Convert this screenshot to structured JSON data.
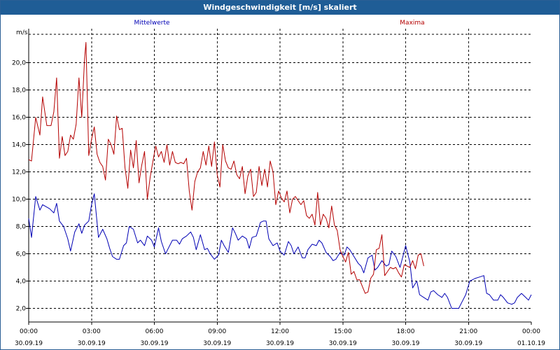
{
  "window": {
    "title": "Windgeschwindigkeit [m/s] skaliert"
  },
  "chart_data": {
    "type": "line",
    "title": "Windgeschwindigkeit [m/s] skaliert",
    "ylabel": "m/s",
    "xlabel": "",
    "ylim": [
      1.0,
      22.5
    ],
    "xlim": [
      0,
      72
    ],
    "x_unit": "hours from 30.09.19 00:00",
    "grid": true,
    "legend_placement": "top",
    "yticks": [
      "2,0",
      "4,0",
      "6,0",
      "8,0",
      "10,0",
      "12,0",
      "14,0",
      "16,0",
      "18,0",
      "20,0"
    ],
    "ytick_values": [
      2,
      4,
      6,
      8,
      10,
      12,
      14,
      16,
      18,
      20
    ],
    "xticks": [
      {
        "time": "00:00",
        "date": "30.09.19"
      },
      {
        "time": "03:00",
        "date": "30.09.19"
      },
      {
        "time": "06:00",
        "date": "30.09.19"
      },
      {
        "time": "09:00",
        "date": "30.09.19"
      },
      {
        "time": "12:00",
        "date": "30.09.19"
      },
      {
        "time": "15:00",
        "date": "30.09.19"
      },
      {
        "time": "18:00",
        "date": "30.09.19"
      },
      {
        "time": "21:00",
        "date": "30.09.19"
      },
      {
        "time": "00:00",
        "date": "01.10.19"
      }
    ],
    "series": [
      {
        "name": "Mittelwerte",
        "color": "#0000b4",
        "values": [
          [
            0,
            8.6
          ],
          [
            0.2,
            7.2
          ],
          [
            0.5,
            10.2
          ],
          [
            0.8,
            9.2
          ],
          [
            1.0,
            9.6
          ],
          [
            1.5,
            9.3
          ],
          [
            1.8,
            9.0
          ],
          [
            2.0,
            9.7
          ],
          [
            2.2,
            8.4
          ],
          [
            2.5,
            8.0
          ],
          [
            2.8,
            7.1
          ],
          [
            3.0,
            6.2
          ],
          [
            3.3,
            7.6
          ],
          [
            3.6,
            8.2
          ],
          [
            3.8,
            7.5
          ],
          [
            4.0,
            8.1
          ],
          [
            4.3,
            8.4
          ],
          [
            4.5,
            9.6
          ],
          [
            4.7,
            10.4
          ],
          [
            5.0,
            7.2
          ],
          [
            5.3,
            7.8
          ],
          [
            5.6,
            7.1
          ],
          [
            5.8,
            6.4
          ],
          [
            6.0,
            5.8
          ],
          [
            6.3,
            5.6
          ],
          [
            6.5,
            5.6
          ],
          [
            6.8,
            6.6
          ],
          [
            7.0,
            6.8
          ],
          [
            7.2,
            8.0
          ],
          [
            7.5,
            7.8
          ],
          [
            7.8,
            6.8
          ],
          [
            8.0,
            7.0
          ],
          [
            8.3,
            6.6
          ],
          [
            8.5,
            7.3
          ],
          [
            8.8,
            7.0
          ],
          [
            9.0,
            6.5
          ],
          [
            9.3,
            7.9
          ],
          [
            9.5,
            6.9
          ],
          [
            9.8,
            6.0
          ],
          [
            10.0,
            6.4
          ],
          [
            10.3,
            7.0
          ],
          [
            10.6,
            7.0
          ],
          [
            10.8,
            6.7
          ],
          [
            11.0,
            7.1
          ],
          [
            11.3,
            7.3
          ],
          [
            11.6,
            7.6
          ],
          [
            11.8,
            7.2
          ],
          [
            12.0,
            6.3
          ],
          [
            12.3,
            7.4
          ],
          [
            12.6,
            6.3
          ],
          [
            12.8,
            6.4
          ],
          [
            13.0,
            6.0
          ],
          [
            13.3,
            5.6
          ],
          [
            13.6,
            5.9
          ],
          [
            13.8,
            7.0
          ],
          [
            14.0,
            6.6
          ],
          [
            14.3,
            6.1
          ],
          [
            14.6,
            7.9
          ],
          [
            14.8,
            7.5
          ],
          [
            15.0,
            7.0
          ],
          [
            15.3,
            7.3
          ],
          [
            15.6,
            7.1
          ],
          [
            15.8,
            6.4
          ],
          [
            16.0,
            7.2
          ],
          [
            16.3,
            7.3
          ],
          [
            16.6,
            8.3
          ],
          [
            16.8,
            8.4
          ],
          [
            17.0,
            8.4
          ],
          [
            17.2,
            7.1
          ],
          [
            17.5,
            6.6
          ],
          [
            17.8,
            6.8
          ],
          [
            18.0,
            6.2
          ],
          [
            18.3,
            5.9
          ],
          [
            18.6,
            6.9
          ],
          [
            18.8,
            6.6
          ],
          [
            19.0,
            6.0
          ],
          [
            19.3,
            6.5
          ],
          [
            19.6,
            5.7
          ],
          [
            19.8,
            5.7
          ],
          [
            20.0,
            6.3
          ],
          [
            20.3,
            6.7
          ],
          [
            20.6,
            6.6
          ],
          [
            20.8,
            7.0
          ],
          [
            21.0,
            6.8
          ],
          [
            21.3,
            6.1
          ],
          [
            21.6,
            5.8
          ],
          [
            21.8,
            5.5
          ],
          [
            22.0,
            5.6
          ],
          [
            22.3,
            6.1
          ],
          [
            22.6,
            5.9
          ],
          [
            22.8,
            6.5
          ],
          [
            23.0,
            6.3
          ],
          [
            23.3,
            5.8
          ],
          [
            23.6,
            5.3
          ],
          [
            23.8,
            5.1
          ],
          [
            24.0,
            4.6
          ],
          [
            24.3,
            5.7
          ],
          [
            24.6,
            5.9
          ],
          [
            24.8,
            4.8
          ],
          [
            25.0,
            5.0
          ],
          [
            25.3,
            5.5
          ],
          [
            25.6,
            5.1
          ],
          [
            25.8,
            5.2
          ],
          [
            26.0,
            6.2
          ],
          [
            26.3,
            5.8
          ],
          [
            26.6,
            5.0
          ],
          [
            26.8,
            5.8
          ],
          [
            27.0,
            6.6
          ],
          [
            27.3,
            5.4
          ],
          [
            27.5,
            3.5
          ],
          [
            27.8,
            4.0
          ],
          [
            28.0,
            3.0
          ],
          [
            28.3,
            2.8
          ],
          [
            28.6,
            2.6
          ],
          [
            28.8,
            3.2
          ],
          [
            29.0,
            3.3
          ],
          [
            29.3,
            3.0
          ],
          [
            29.6,
            2.8
          ],
          [
            29.8,
            3.1
          ],
          [
            30.0,
            2.8
          ],
          [
            30.3,
            2.0
          ],
          [
            30.6,
            2.0
          ],
          [
            30.8,
            2.0
          ],
          [
            31.0,
            2.4
          ],
          [
            31.3,
            3.0
          ],
          [
            31.6,
            4.0
          ],
          [
            31.8,
            4.1
          ],
          [
            32.0,
            4.2
          ],
          [
            32.3,
            4.3
          ],
          [
            32.6,
            4.4
          ],
          [
            32.8,
            3.1
          ],
          [
            33.0,
            3.0
          ],
          [
            33.3,
            2.6
          ],
          [
            33.6,
            2.6
          ],
          [
            33.8,
            3.0
          ],
          [
            34.0,
            2.8
          ],
          [
            34.3,
            2.4
          ],
          [
            34.6,
            2.3
          ],
          [
            34.8,
            2.4
          ],
          [
            35.0,
            2.8
          ],
          [
            35.3,
            3.1
          ],
          [
            35.6,
            2.8
          ],
          [
            35.8,
            2.6
          ],
          [
            36.0,
            3.0
          ]
        ]
      },
      {
        "name": "Maxima",
        "color": "#b40000",
        "values": [
          [
            0,
            12.9
          ],
          [
            0.2,
            12.8
          ],
          [
            0.5,
            16.0
          ],
          [
            0.8,
            14.7
          ],
          [
            1.0,
            17.5
          ],
          [
            1.3,
            15.4
          ],
          [
            1.6,
            15.4
          ],
          [
            1.8,
            16.4
          ],
          [
            2.0,
            18.9
          ],
          [
            2.2,
            13.0
          ],
          [
            2.4,
            14.6
          ],
          [
            2.6,
            13.2
          ],
          [
            2.8,
            13.5
          ],
          [
            3.0,
            14.7
          ],
          [
            3.2,
            14.4
          ],
          [
            3.4,
            15.5
          ],
          [
            3.6,
            18.9
          ],
          [
            3.8,
            16.0
          ],
          [
            4.0,
            20.3
          ],
          [
            4.1,
            21.5
          ],
          [
            4.3,
            13.2
          ],
          [
            4.5,
            14.4
          ],
          [
            4.7,
            15.3
          ],
          [
            4.9,
            13.3
          ],
          [
            5.1,
            12.7
          ],
          [
            5.3,
            12.4
          ],
          [
            5.5,
            11.4
          ],
          [
            5.7,
            14.4
          ],
          [
            5.9,
            14.0
          ],
          [
            6.1,
            13.3
          ],
          [
            6.3,
            16.1
          ],
          [
            6.5,
            15.1
          ],
          [
            6.7,
            15.2
          ],
          [
            6.9,
            12.3
          ],
          [
            7.1,
            10.8
          ],
          [
            7.3,
            13.6
          ],
          [
            7.5,
            12.3
          ],
          [
            7.7,
            14.3
          ],
          [
            7.9,
            11.2
          ],
          [
            8.1,
            12.5
          ],
          [
            8.3,
            13.5
          ],
          [
            8.5,
            10.0
          ],
          [
            8.7,
            11.6
          ],
          [
            8.9,
            12.8
          ],
          [
            9.1,
            13.9
          ],
          [
            9.3,
            13.1
          ],
          [
            9.5,
            13.5
          ],
          [
            9.7,
            12.7
          ],
          [
            9.9,
            14.0
          ],
          [
            10.1,
            12.5
          ],
          [
            10.3,
            13.5
          ],
          [
            10.5,
            12.7
          ],
          [
            10.7,
            12.6
          ],
          [
            10.9,
            12.7
          ],
          [
            11.1,
            12.6
          ],
          [
            11.3,
            13.0
          ],
          [
            11.5,
            10.6
          ],
          [
            11.7,
            9.2
          ],
          [
            11.9,
            11.3
          ],
          [
            12.1,
            12.0
          ],
          [
            12.3,
            12.3
          ],
          [
            12.5,
            13.5
          ],
          [
            12.7,
            12.5
          ],
          [
            12.9,
            13.9
          ],
          [
            13.1,
            12.4
          ],
          [
            13.3,
            14.2
          ],
          [
            13.5,
            11.8
          ],
          [
            13.7,
            10.9
          ],
          [
            13.9,
            14.0
          ],
          [
            14.1,
            12.8
          ],
          [
            14.3,
            12.3
          ],
          [
            14.5,
            12.2
          ],
          [
            14.7,
            12.8
          ],
          [
            14.9,
            11.8
          ],
          [
            15.1,
            11.5
          ],
          [
            15.3,
            12.4
          ],
          [
            15.5,
            10.4
          ],
          [
            15.7,
            11.7
          ],
          [
            15.9,
            12.2
          ],
          [
            16.1,
            10.2
          ],
          [
            16.3,
            10.5
          ],
          [
            16.5,
            12.4
          ],
          [
            16.7,
            11.0
          ],
          [
            16.9,
            12.2
          ],
          [
            17.1,
            10.9
          ],
          [
            17.3,
            12.8
          ],
          [
            17.5,
            12.0
          ],
          [
            17.7,
            9.6
          ],
          [
            17.9,
            10.6
          ],
          [
            18.1,
            10.1
          ],
          [
            18.3,
            9.8
          ],
          [
            18.5,
            10.6
          ],
          [
            18.7,
            9.0
          ],
          [
            18.9,
            10.0
          ],
          [
            19.1,
            10.2
          ],
          [
            19.3,
            9.9
          ],
          [
            19.5,
            9.6
          ],
          [
            19.7,
            9.9
          ],
          [
            19.9,
            8.8
          ],
          [
            20.1,
            8.6
          ],
          [
            20.3,
            8.9
          ],
          [
            20.5,
            8.1
          ],
          [
            20.7,
            10.5
          ],
          [
            20.9,
            8.1
          ],
          [
            21.1,
            8.9
          ],
          [
            21.3,
            8.6
          ],
          [
            21.5,
            7.9
          ],
          [
            21.7,
            9.5
          ],
          [
            21.9,
            8.1
          ],
          [
            22.1,
            7.7
          ],
          [
            22.3,
            6.3
          ],
          [
            22.5,
            5.8
          ],
          [
            22.7,
            5.4
          ],
          [
            22.9,
            6.1
          ],
          [
            23.1,
            4.5
          ],
          [
            23.3,
            4.7
          ],
          [
            23.5,
            4.1
          ],
          [
            23.7,
            4.1
          ],
          [
            23.9,
            3.6
          ],
          [
            24.1,
            3.1
          ],
          [
            24.3,
            3.2
          ],
          [
            24.5,
            4.2
          ],
          [
            24.7,
            4.5
          ],
          [
            24.9,
            6.3
          ],
          [
            25.1,
            6.4
          ],
          [
            25.3,
            7.4
          ],
          [
            25.5,
            4.4
          ],
          [
            25.7,
            4.7
          ],
          [
            25.9,
            5.0
          ],
          [
            26.1,
            4.9
          ],
          [
            26.3,
            5.0
          ],
          [
            26.5,
            4.6
          ],
          [
            26.7,
            4.3
          ],
          [
            26.9,
            5.2
          ],
          [
            27.1,
            5.1
          ],
          [
            27.3,
            5.0
          ],
          [
            27.5,
            5.5
          ],
          [
            27.7,
            4.9
          ],
          [
            27.9,
            5.9
          ],
          [
            28.1,
            6.0
          ],
          [
            28.3,
            5.1
          ]
        ]
      }
    ]
  }
}
